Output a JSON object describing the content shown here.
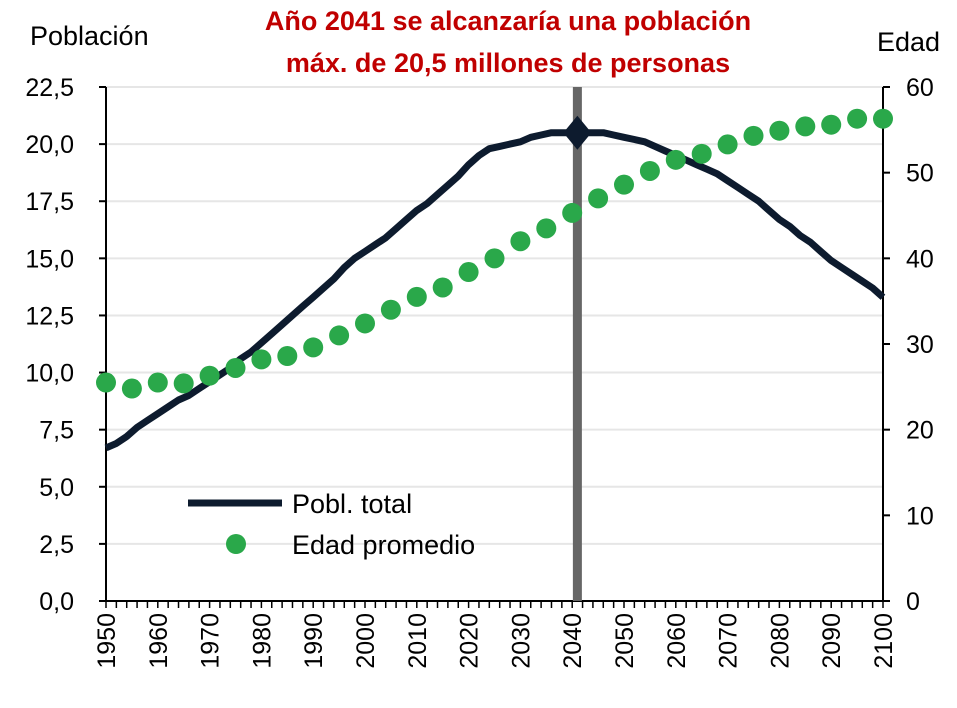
{
  "chart_data": {
    "type": "line",
    "title": "Año 2041 se alcanzaría una población\nmáx. de 20,5 millones de personas",
    "ylabel_left": "Población",
    "ylabel_right": "Edad",
    "ylim_left": [
      0,
      22.5
    ],
    "ylim_right": [
      0,
      60
    ],
    "xlim": [
      1950,
      2100
    ],
    "x_ticks": [
      "1950",
      "1960",
      "1970",
      "1980",
      "1990",
      "2000",
      "2010",
      "2020",
      "2030",
      "2040",
      "2050",
      "2060",
      "2070",
      "2080",
      "2090",
      "2100"
    ],
    "y_ticks_left": [
      "0,0",
      "2,5",
      "5,0",
      "7,5",
      "10,0",
      "12,5",
      "15,0",
      "17,5",
      "20,0",
      "22,5"
    ],
    "y_ticks_right": [
      "0",
      "10",
      "20",
      "30",
      "40",
      "50",
      "60"
    ],
    "marker_year": 2041,
    "peak": {
      "x": 2041,
      "y": 20.5
    },
    "grid": true,
    "legend_position": "bottom-left",
    "series": [
      {
        "name": "Pobl. total",
        "axis": "left",
        "style": "line",
        "color": "#0d1b2e",
        "x": [
          1950,
          1952,
          1954,
          1956,
          1958,
          1960,
          1962,
          1964,
          1966,
          1968,
          1970,
          1972,
          1974,
          1976,
          1978,
          1980,
          1982,
          1984,
          1986,
          1988,
          1990,
          1992,
          1994,
          1996,
          1998,
          2000,
          2002,
          2004,
          2006,
          2008,
          2010,
          2012,
          2014,
          2016,
          2018,
          2020,
          2022,
          2024,
          2026,
          2028,
          2030,
          2032,
          2034,
          2036,
          2038,
          2041,
          2044,
          2046,
          2048,
          2050,
          2052,
          2054,
          2056,
          2058,
          2060,
          2062,
          2064,
          2066,
          2068,
          2070,
          2072,
          2074,
          2076,
          2078,
          2080,
          2082,
          2084,
          2086,
          2088,
          2090,
          2092,
          2094,
          2096,
          2098,
          2100
        ],
        "values": [
          6.7,
          6.9,
          7.2,
          7.6,
          7.9,
          8.2,
          8.5,
          8.8,
          9.0,
          9.3,
          9.6,
          9.9,
          10.2,
          10.6,
          10.9,
          11.3,
          11.7,
          12.1,
          12.5,
          12.9,
          13.3,
          13.7,
          14.1,
          14.6,
          15.0,
          15.3,
          15.6,
          15.9,
          16.3,
          16.7,
          17.1,
          17.4,
          17.8,
          18.2,
          18.6,
          19.1,
          19.5,
          19.8,
          19.9,
          20.0,
          20.1,
          20.3,
          20.4,
          20.5,
          20.5,
          20.5,
          20.5,
          20.5,
          20.4,
          20.3,
          20.2,
          20.1,
          19.9,
          19.7,
          19.5,
          19.3,
          19.1,
          18.9,
          18.7,
          18.4,
          18.1,
          17.8,
          17.5,
          17.1,
          16.7,
          16.4,
          16.0,
          15.7,
          15.3,
          14.9,
          14.6,
          14.3,
          14.0,
          13.7,
          13.3
        ]
      },
      {
        "name": "Edad promedio",
        "axis": "right",
        "style": "scatter",
        "color": "#2aa84a",
        "x": [
          1950,
          1955,
          1960,
          1965,
          1970,
          1975,
          1980,
          1985,
          1990,
          1995,
          2000,
          2005,
          2010,
          2015,
          2020,
          2025,
          2030,
          2035,
          2040,
          2045,
          2050,
          2055,
          2060,
          2065,
          2070,
          2075,
          2080,
          2085,
          2090,
          2095,
          2100
        ],
        "values": [
          25.5,
          24.8,
          25.5,
          25.4,
          26.3,
          27.2,
          28.2,
          28.6,
          29.6,
          31.0,
          32.4,
          34.0,
          35.5,
          36.6,
          38.4,
          40.0,
          42.0,
          43.5,
          45.3,
          47.0,
          48.6,
          50.2,
          51.5,
          52.2,
          53.3,
          54.3,
          54.9,
          55.4,
          55.6,
          56.3,
          56.3
        ]
      }
    ]
  }
}
